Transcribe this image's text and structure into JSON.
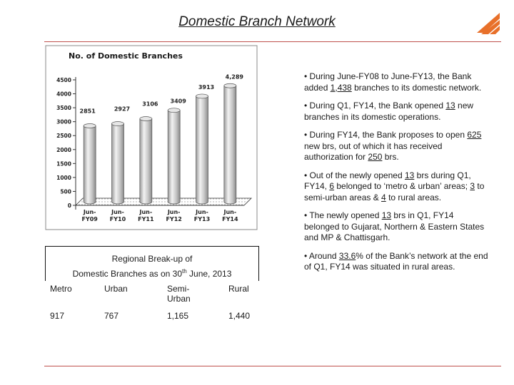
{
  "page": {
    "title": "Domestic Branch Network",
    "accent_color": "#c0504d"
  },
  "logo": {
    "icon": "bank-of-baroda-logo",
    "color": "#e8702a"
  },
  "chart_data": {
    "type": "bar",
    "title": "No. of Domestic Branches",
    "categories": [
      "Jun-FY09",
      "Jun-FY10",
      "Jun-FY11",
      "Jun-FY12",
      "Jun-FY13",
      "Jun-FY14"
    ],
    "category_lines": [
      [
        "Jun-",
        "FY09"
      ],
      [
        "Jun-",
        "FY10"
      ],
      [
        "Jun-",
        "FY11"
      ],
      [
        "Jun-",
        "FY12"
      ],
      [
        "Jun-",
        "FY13"
      ],
      [
        "Jun-",
        "FY14"
      ]
    ],
    "values": [
      2851,
      2927,
      3106,
      3409,
      3913,
      4289
    ],
    "data_labels": [
      "2851",
      "2927",
      "3106",
      "3409",
      "3913",
      "4,289"
    ],
    "yticks": [
      "0",
      "500",
      "1000",
      "1500",
      "2000",
      "2500",
      "3000",
      "3500",
      "4000",
      "4500"
    ],
    "ylim": [
      0,
      4500
    ],
    "bar_color": "#c8c8c8",
    "grid": false,
    "style": "3d-cylinder"
  },
  "bullets": [
    {
      "parts": [
        [
          "• During June-FY08 to June-FY13, the Bank added ",
          false
        ],
        [
          "1,438",
          true
        ],
        [
          " branches to its domestic network.",
          false
        ]
      ]
    },
    {
      "parts": [
        [
          "• During Q1, FY14, the Bank opened ",
          false
        ],
        [
          "13",
          true
        ],
        [
          " new branches in its domestic operations.",
          false
        ]
      ]
    },
    {
      "parts": [
        [
          "• During FY14, the Bank proposes to open ",
          false
        ],
        [
          "625",
          true
        ],
        [
          " new brs, out of which it has received authorization for ",
          false
        ],
        [
          "250",
          true
        ],
        [
          " brs.",
          false
        ]
      ]
    },
    {
      "parts": [
        [
          "• Out of the newly opened ",
          false
        ],
        [
          "13",
          true
        ],
        [
          " brs during Q1, FY14, ",
          false
        ],
        [
          "6",
          true
        ],
        [
          " belonged to ‘metro & urban’ areas; ",
          false
        ],
        [
          "3",
          true
        ],
        [
          " to semi-urban areas & ",
          false
        ],
        [
          "4",
          true
        ],
        [
          " to rural areas.",
          false
        ]
      ]
    },
    {
      "parts": [
        [
          "• The newly opened ",
          false
        ],
        [
          "13",
          true
        ],
        [
          " brs in Q1, FY14 belonged to Gujarat, Northern & Eastern States and MP & Chattisgarh.",
          false
        ]
      ]
    },
    {
      "parts": [
        [
          "• Around ",
          false
        ],
        [
          "33.6",
          true
        ],
        [
          "% of the Bank’s network at the end of Q1, FY14 was situated in rural areas.",
          false
        ]
      ]
    }
  ],
  "regional": {
    "title_line1": "Regional Break-up of",
    "title_line2_pre": "Domestic Branches as on 30",
    "title_line2_sup": "th",
    "title_line2_post": " June, 2013",
    "headers": [
      "Metro",
      "Urban",
      "Semi-Urban",
      "Rural"
    ],
    "header_lines": [
      [
        "Metro"
      ],
      [
        "Urban"
      ],
      [
        "Semi-",
        "Urban"
      ],
      [
        "Rural"
      ]
    ],
    "values": [
      "917",
      "767",
      "1,165",
      "1,440"
    ]
  }
}
